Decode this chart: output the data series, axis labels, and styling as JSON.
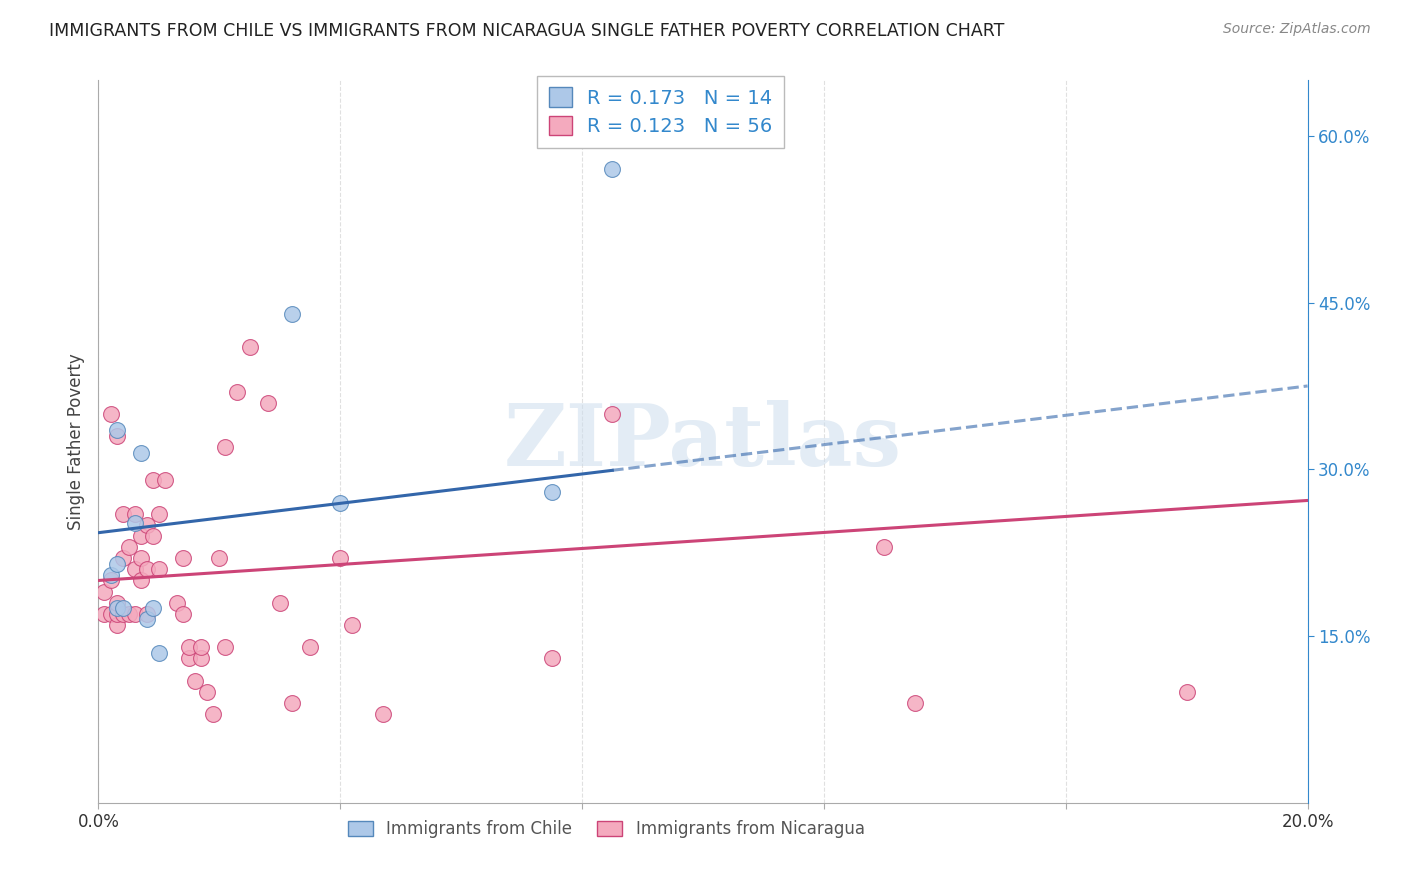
{
  "title": "IMMIGRANTS FROM CHILE VS IMMIGRANTS FROM NICARAGUA SINGLE FATHER POVERTY CORRELATION CHART",
  "source": "Source: ZipAtlas.com",
  "ylabel": "Single Father Poverty",
  "x_min": 0.0,
  "x_max": 0.2,
  "y_min": 0.0,
  "y_max": 0.65,
  "x_tick_positions": [
    0.0,
    0.04,
    0.08,
    0.12,
    0.16,
    0.2
  ],
  "x_tick_labels": [
    "0.0%",
    "",
    "",
    "",
    "",
    "20.0%"
  ],
  "y_tick_positions": [
    0.15,
    0.3,
    0.45,
    0.6
  ],
  "y_tick_labels": [
    "15.0%",
    "30.0%",
    "45.0%",
    "60.0%"
  ],
  "chile_fill_color": "#adc8e8",
  "chile_edge_color": "#5588bb",
  "nicaragua_fill_color": "#f4aabe",
  "nicaragua_edge_color": "#cc4477",
  "chile_line_color": "#3366aa",
  "nicaragua_line_color": "#cc4477",
  "blue_text_color": "#3388cc",
  "watermark_color": "#ccdded",
  "grid_color": "#dddddd",
  "background_color": "#ffffff",
  "title_color": "#222222",
  "source_color": "#888888",
  "ylabel_color": "#444444",
  "right_axis_color": "#3388cc",
  "chile_line_y0": 0.243,
  "chile_line_y1": 0.375,
  "chile_line_x_solid_end": 0.085,
  "nicaragua_line_y0": 0.2,
  "nicaragua_line_y1": 0.272,
  "chile_scatter_x": [
    0.002,
    0.003,
    0.003,
    0.004,
    0.006,
    0.007,
    0.008,
    0.009,
    0.01,
    0.032,
    0.04,
    0.075,
    0.085,
    0.003
  ],
  "chile_scatter_y": [
    0.205,
    0.215,
    0.175,
    0.175,
    0.252,
    0.315,
    0.165,
    0.175,
    0.135,
    0.44,
    0.27,
    0.28,
    0.57,
    0.335
  ],
  "nicaragua_scatter_x": [
    0.001,
    0.001,
    0.002,
    0.002,
    0.002,
    0.003,
    0.003,
    0.003,
    0.003,
    0.004,
    0.004,
    0.004,
    0.005,
    0.005,
    0.006,
    0.006,
    0.006,
    0.007,
    0.007,
    0.007,
    0.008,
    0.008,
    0.008,
    0.009,
    0.009,
    0.01,
    0.01,
    0.011,
    0.013,
    0.014,
    0.014,
    0.015,
    0.015,
    0.016,
    0.017,
    0.017,
    0.018,
    0.019,
    0.02,
    0.021,
    0.021,
    0.023,
    0.025,
    0.028,
    0.03,
    0.032,
    0.035,
    0.04,
    0.042,
    0.047,
    0.075,
    0.082,
    0.085,
    0.13,
    0.135,
    0.18
  ],
  "nicaragua_scatter_y": [
    0.17,
    0.19,
    0.17,
    0.2,
    0.35,
    0.16,
    0.17,
    0.18,
    0.33,
    0.17,
    0.22,
    0.26,
    0.17,
    0.23,
    0.17,
    0.21,
    0.26,
    0.2,
    0.22,
    0.24,
    0.17,
    0.21,
    0.25,
    0.24,
    0.29,
    0.21,
    0.26,
    0.29,
    0.18,
    0.22,
    0.17,
    0.13,
    0.14,
    0.11,
    0.13,
    0.14,
    0.1,
    0.08,
    0.22,
    0.14,
    0.32,
    0.37,
    0.41,
    0.36,
    0.18,
    0.09,
    0.14,
    0.22,
    0.16,
    0.08,
    0.13,
    0.6,
    0.35,
    0.23,
    0.09,
    0.1
  ],
  "legend_label_chile": "Immigrants from Chile",
  "legend_label_nicaragua": "Immigrants from Nicaragua",
  "chile_R": "0.173",
  "chile_N": "14",
  "nicaragua_R": "0.123",
  "nicaragua_N": "56",
  "watermark_text": "ZIPatlas"
}
